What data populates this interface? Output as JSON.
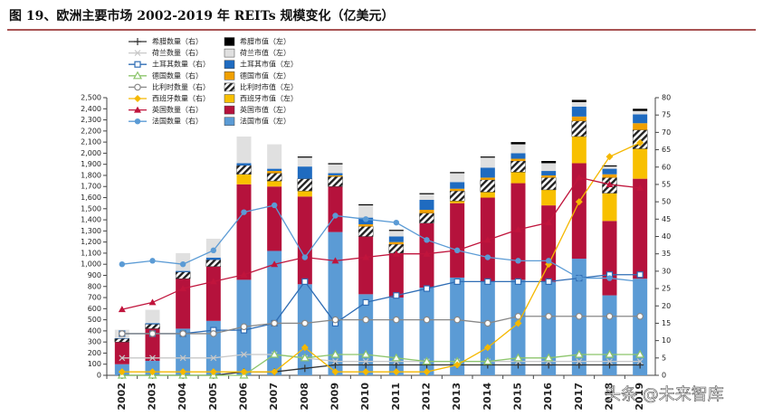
{
  "chart_data": {
    "type": "bar-line",
    "title": "图 19、欧洲主要市场 2002-2019 年 REITs 规模变化（亿美元）",
    "watermark": "头条 @未来智库",
    "categories": [
      "2002",
      "2003",
      "2004",
      "2005",
      "2006",
      "2007",
      "2008",
      "2009",
      "2010",
      "2011",
      "2012",
      "2013",
      "2014",
      "2015",
      "2016",
      "2017",
      "2018",
      "2019"
    ],
    "ylim": [
      0,
      2500
    ],
    "yticks": [
      0,
      100,
      200,
      300,
      400,
      500,
      600,
      700,
      800,
      900,
      {
        "value": 1000,
        "label": "1,000"
      },
      {
        "value": 1100,
        "label": "1,100"
      },
      {
        "value": 1200,
        "label": "1,200"
      },
      {
        "value": 1300,
        "label": "1,300"
      },
      {
        "value": 1400,
        "label": "1,400"
      },
      {
        "value": 1500,
        "label": "1,500"
      },
      {
        "value": 1600,
        "label": "1,600"
      },
      {
        "value": 1700,
        "label": "1,700"
      },
      {
        "value": 1800,
        "label": "1,800"
      },
      {
        "value": 1900,
        "label": "1,900"
      },
      {
        "value": 2000,
        "label": "2,000"
      },
      {
        "value": 2100,
        "label": "2,100"
      },
      {
        "value": 2200,
        "label": "2,200"
      },
      {
        "value": 2300,
        "label": "2,300"
      },
      {
        "value": 2400,
        "label": "2,400"
      },
      {
        "value": 2500,
        "label": "2,500"
      }
    ],
    "y2lim": [
      0,
      80
    ],
    "y2ticks": [
      0,
      5,
      10,
      15,
      20,
      25,
      30,
      35,
      40,
      45,
      50,
      55,
      60,
      65,
      70,
      75,
      80
    ],
    "series": [
      {
        "name": "希腊数量（右）",
        "type": "line",
        "axis": "y2",
        "marker": "plus",
        "color": "#333333",
        "values": [
          0,
          0,
          0,
          0,
          1,
          1,
          2,
          3,
          3,
          3,
          3,
          3,
          3,
          3,
          3,
          3,
          3,
          3
        ]
      },
      {
        "name": "荷兰数量（右）",
        "type": "line",
        "axis": "y2",
        "marker": "cross",
        "color": "#c8c8c8",
        "values": [
          5,
          5,
          5,
          5,
          6,
          6,
          5,
          4,
          4,
          4,
          4,
          4,
          4,
          4,
          4,
          4,
          4,
          4
        ]
      },
      {
        "name": "土耳其数量（右）",
        "type": "line",
        "axis": "y2",
        "marker": "square",
        "color": "#2f6db5",
        "values": [
          12,
          12,
          12,
          13,
          13,
          15,
          27,
          15,
          21,
          23,
          25,
          27,
          27,
          27,
          27,
          28,
          29,
          29
        ]
      },
      {
        "name": "德国数量（右）",
        "type": "line",
        "axis": "y2",
        "marker": "triangle-open",
        "color": "#8cc56b",
        "values": [
          0,
          0,
          0,
          0,
          0,
          6,
          5,
          6,
          6,
          5,
          4,
          4,
          4,
          5,
          5,
          6,
          6,
          6
        ]
      },
      {
        "name": "比利时数量（右）",
        "type": "line",
        "axis": "y2",
        "marker": "circle-open",
        "color": "#888888",
        "values": [
          12,
          12,
          12,
          12,
          14,
          15,
          15,
          16,
          16,
          16,
          16,
          16,
          15,
          17,
          17,
          17,
          17,
          17
        ]
      },
      {
        "name": "西班牙数量（右）",
        "type": "line",
        "axis": "y2",
        "marker": "diamond",
        "color": "#f5b800",
        "values": [
          1,
          1,
          1,
          1,
          1,
          1,
          8,
          1,
          1,
          1,
          1,
          3,
          8,
          15,
          32,
          50,
          63,
          67
        ]
      },
      {
        "name": "英国数量（右）",
        "type": "line",
        "axis": "y2",
        "marker": "triangle",
        "color": "#c0143c",
        "values": [
          19,
          21,
          25,
          27,
          29,
          32,
          34,
          33,
          34,
          35,
          35,
          36,
          39,
          42,
          44,
          57,
          55,
          54
        ]
      },
      {
        "name": "法国数量（右）",
        "type": "line",
        "axis": "y2",
        "marker": "circle",
        "color": "#5b9bd5",
        "values": [
          32,
          33,
          32,
          36,
          47,
          49,
          34,
          46,
          45,
          44,
          39,
          36,
          34,
          33,
          33,
          28,
          28,
          27
        ]
      },
      {
        "name": "希腊市值（左）",
        "type": "bar",
        "axis": "y",
        "color": "#000000",
        "values": [
          0,
          0,
          0,
          0,
          0,
          0,
          10,
          10,
          10,
          10,
          10,
          10,
          10,
          20,
          20,
          20,
          10,
          20
        ]
      },
      {
        "name": "荷兰市值（左）",
        "type": "bar",
        "axis": "y",
        "color": "#e0e0e0",
        "values": [
          75,
          120,
          160,
          170,
          240,
          220,
          80,
          80,
          110,
          50,
          50,
          80,
          90,
          80,
          70,
          40,
          20,
          30
        ]
      },
      {
        "name": "土耳其市值（左）",
        "type": "bar",
        "axis": "y",
        "color": "#1f6bc0",
        "values": [
          5,
          10,
          10,
          20,
          20,
          20,
          110,
          20,
          60,
          50,
          90,
          60,
          90,
          50,
          40,
          90,
          50,
          80
        ]
      },
      {
        "name": "德国市值（左）",
        "type": "bar",
        "axis": "y",
        "color": "#f0a000",
        "values": [
          0,
          0,
          0,
          0,
          0,
          20,
          0,
          10,
          20,
          20,
          30,
          20,
          20,
          20,
          20,
          40,
          30,
          60
        ]
      },
      {
        "name": "比利时市值（左）",
        "type": "bar",
        "axis": "y",
        "color": "#222222",
        "pattern": "hatch",
        "values": [
          30,
          40,
          60,
          60,
          80,
          70,
          110,
          90,
          90,
          80,
          90,
          90,
          110,
          100,
          110,
          140,
          140,
          170
        ]
      },
      {
        "name": "西班牙市值（左）",
        "type": "bar",
        "axis": "y",
        "color": "#f8c000",
        "values": [
          0,
          0,
          0,
          0,
          90,
          50,
          50,
          0,
          0,
          0,
          0,
          20,
          50,
          100,
          140,
          240,
          250,
          270
        ]
      },
      {
        "name": "英国市值（左）",
        "type": "bar",
        "axis": "y",
        "color": "#b5123c",
        "values": [
          200,
          290,
          450,
          490,
          860,
          580,
          790,
          410,
          520,
          400,
          580,
          670,
          760,
          870,
          690,
          860,
          670,
          900
        ]
      },
      {
        "name": "法国市值（左）",
        "type": "bar",
        "axis": "y",
        "color": "#5b9bd5",
        "values": [
          100,
          130,
          420,
          490,
          860,
          1120,
          820,
          1290,
          730,
          700,
          790,
          880,
          840,
          860,
          840,
          1050,
          720,
          870
        ]
      }
    ]
  }
}
